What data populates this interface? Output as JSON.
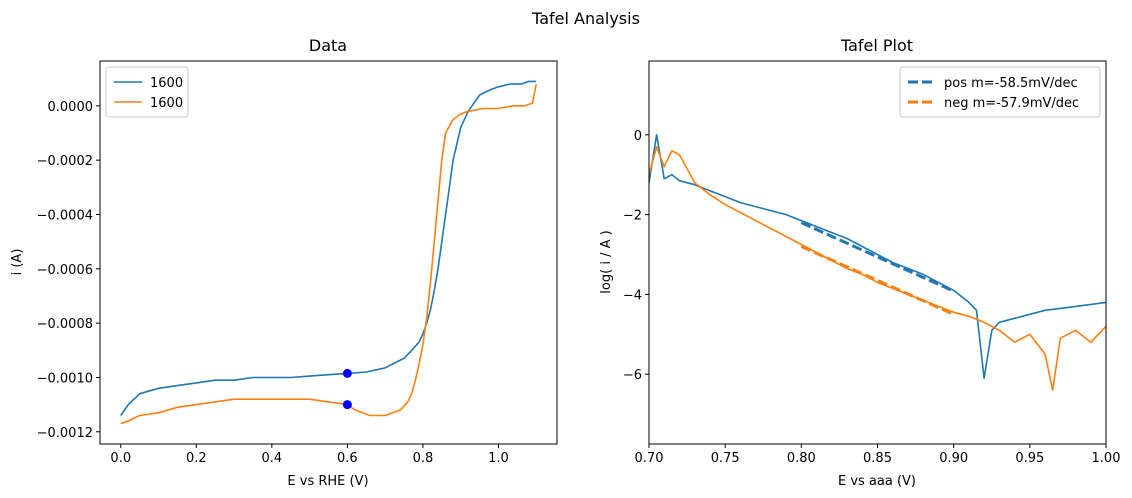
{
  "figure": {
    "suptitle": "Tafel Analysis"
  },
  "colors": {
    "blue": "#1f77b4",
    "orange": "#ff7f0e",
    "marker": "#0000ff"
  },
  "chart_data": [
    {
      "type": "line",
      "title": "Data",
      "xlabel": "E vs RHE (V)",
      "ylabel": "i (A)",
      "xlim": [
        -0.055,
        1.155
      ],
      "ylim": [
        -0.001245,
        0.000165
      ],
      "xticks": [
        0.0,
        0.2,
        0.4,
        0.6,
        0.8,
        1.0
      ],
      "xtick_labels": [
        "0.0",
        "0.2",
        "0.4",
        "0.6",
        "0.8",
        "1.0"
      ],
      "yticks": [
        -0.0012,
        -0.001,
        -0.0008,
        -0.0006,
        -0.0004,
        -0.0002,
        0.0
      ],
      "ytick_labels": [
        "−0.0012",
        "−0.0010",
        "−0.0008",
        "−0.0006",
        "−0.0004",
        "−0.0002",
        "0.0000"
      ],
      "legend_position": "upper-left",
      "series": [
        {
          "name": "1600",
          "color": "blue",
          "x": [
            0.0,
            0.02,
            0.05,
            0.1,
            0.15,
            0.2,
            0.25,
            0.3,
            0.35,
            0.4,
            0.45,
            0.5,
            0.55,
            0.6,
            0.65,
            0.7,
            0.72,
            0.75,
            0.77,
            0.79,
            0.8,
            0.81,
            0.82,
            0.83,
            0.84,
            0.85,
            0.86,
            0.87,
            0.88,
            0.9,
            0.92,
            0.95,
            0.98,
            1.0,
            1.03,
            1.06,
            1.08,
            1.1
          ],
          "y": [
            -0.00114,
            -0.0011,
            -0.00106,
            -0.00104,
            -0.00103,
            -0.00102,
            -0.00101,
            -0.00101,
            -0.001,
            -0.001,
            -0.001,
            -0.000995,
            -0.00099,
            -0.000985,
            -0.00098,
            -0.000965,
            -0.00095,
            -0.00093,
            -0.0009,
            -0.00087,
            -0.00084,
            -0.0008,
            -0.00075,
            -0.00068,
            -0.0006,
            -0.0005,
            -0.0004,
            -0.0003,
            -0.0002,
            -8e-05,
            -2e-05,
            4e-05,
            6e-05,
            7e-05,
            8e-05,
            8e-05,
            9e-05,
            9e-05
          ]
        },
        {
          "name": "1600",
          "color": "orange",
          "x": [
            1.1,
            1.09,
            1.07,
            1.04,
            1.0,
            0.96,
            0.92,
            0.9,
            0.88,
            0.86,
            0.85,
            0.84,
            0.83,
            0.82,
            0.81,
            0.8,
            0.79,
            0.78,
            0.77,
            0.76,
            0.74,
            0.72,
            0.7,
            0.68,
            0.66,
            0.64,
            0.62,
            0.6,
            0.55,
            0.5,
            0.45,
            0.4,
            0.35,
            0.3,
            0.25,
            0.2,
            0.15,
            0.1,
            0.05,
            0.02,
            0.0
          ],
          "y": [
            8e-05,
            1e-05,
            0.0,
            0.0,
            -1e-05,
            -1e-05,
            -2e-05,
            -3e-05,
            -5e-05,
            -0.0001,
            -0.0002,
            -0.00035,
            -0.0005,
            -0.00065,
            -0.00078,
            -0.00088,
            -0.00095,
            -0.00101,
            -0.00106,
            -0.00109,
            -0.00112,
            -0.00113,
            -0.00114,
            -0.00114,
            -0.00114,
            -0.00113,
            -0.00112,
            -0.0011,
            -0.00109,
            -0.00108,
            -0.00108,
            -0.00108,
            -0.00108,
            -0.00108,
            -0.00109,
            -0.0011,
            -0.00111,
            -0.00113,
            -0.00114,
            -0.00116,
            -0.00117
          ]
        }
      ],
      "points": [
        {
          "x": 0.6,
          "y": -0.000985,
          "color": "marker"
        },
        {
          "x": 0.6,
          "y": -0.0011,
          "color": "marker"
        }
      ]
    },
    {
      "type": "line",
      "title": "Tafel Plot",
      "xlabel": "E vs aaa (V)",
      "ylabel": "log( i / A )",
      "xlim": [
        0.7,
        1.0
      ],
      "ylim": [
        -7.75,
        1.85
      ],
      "xticks": [
        0.7,
        0.75,
        0.8,
        0.85,
        0.9,
        0.95,
        1.0
      ],
      "xtick_labels": [
        "0.70",
        "0.75",
        "0.80",
        "0.85",
        "0.90",
        "0.95",
        "1.00"
      ],
      "yticks": [
        -6,
        -4,
        -2,
        0
      ],
      "ytick_labels": [
        "−6",
        "−4",
        "−2",
        "0"
      ],
      "legend_position": "upper-right",
      "series": [
        {
          "name": "",
          "color": "blue",
          "x": [
            0.7,
            0.705,
            0.71,
            0.715,
            0.72,
            0.73,
            0.74,
            0.75,
            0.76,
            0.77,
            0.78,
            0.79,
            0.8,
            0.81,
            0.82,
            0.83,
            0.84,
            0.85,
            0.86,
            0.87,
            0.88,
            0.89,
            0.9,
            0.91,
            0.915,
            0.92,
            0.925,
            0.93,
            0.94,
            0.95,
            0.96,
            0.97,
            0.98,
            0.99,
            1.0
          ],
          "y": [
            -1.2,
            0.0,
            -1.1,
            -1.0,
            -1.15,
            -1.25,
            -1.4,
            -1.55,
            -1.7,
            -1.8,
            -1.9,
            -2.0,
            -2.15,
            -2.3,
            -2.45,
            -2.6,
            -2.8,
            -3.0,
            -3.2,
            -3.35,
            -3.5,
            -3.7,
            -3.9,
            -4.2,
            -4.4,
            -6.1,
            -4.9,
            -4.7,
            -4.6,
            -4.5,
            -4.4,
            -4.35,
            -4.3,
            -4.25,
            -4.2
          ]
        },
        {
          "name": "",
          "color": "orange",
          "x": [
            0.7,
            0.705,
            0.71,
            0.715,
            0.72,
            0.73,
            0.74,
            0.75,
            0.76,
            0.77,
            0.78,
            0.79,
            0.8,
            0.81,
            0.82,
            0.83,
            0.84,
            0.85,
            0.86,
            0.87,
            0.88,
            0.89,
            0.9,
            0.91,
            0.92,
            0.93,
            0.94,
            0.95,
            0.96,
            0.965,
            0.97,
            0.98,
            0.99,
            1.0
          ],
          "y": [
            -1.0,
            -0.3,
            -0.8,
            -0.4,
            -0.5,
            -1.2,
            -1.5,
            -1.75,
            -1.95,
            -2.15,
            -2.35,
            -2.55,
            -2.75,
            -2.95,
            -3.15,
            -3.35,
            -3.5,
            -3.7,
            -3.85,
            -4.0,
            -4.15,
            -4.3,
            -4.45,
            -4.55,
            -4.7,
            -4.9,
            -5.2,
            -5.0,
            -5.5,
            -6.4,
            -5.1,
            -4.9,
            -5.2,
            -4.8
          ]
        },
        {
          "name": "pos m=-58.5mV/dec",
          "color": "blue",
          "dashed": true,
          "x": [
            0.8,
            0.9
          ],
          "y": [
            -2.2,
            -3.92
          ]
        },
        {
          "name": "neg m=-57.9mV/dec",
          "color": "orange",
          "dashed": true,
          "x": [
            0.8,
            0.9
          ],
          "y": [
            -2.8,
            -4.5
          ]
        }
      ]
    }
  ]
}
